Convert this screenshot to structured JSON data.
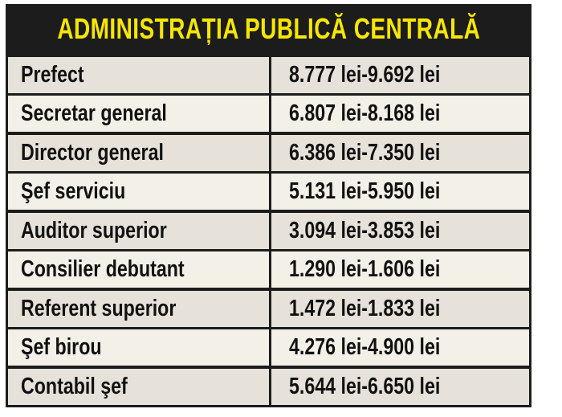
{
  "title": "ADMINISTRAȚIA PUBLICĂ CENTRALĂ",
  "rows": [
    {
      "position": "Prefect",
      "salary": "8.777 lei-9.692 lei"
    },
    {
      "position": "Secretar general",
      "salary": "6.807 lei-8.168 lei"
    },
    {
      "position": "Director general",
      "salary": "6.386 lei-7.350 lei"
    },
    {
      "position": "Şef serviciu",
      "salary": "5.131 lei-5.950 lei"
    },
    {
      "position": "Auditor superior",
      "salary": "3.094 lei-3.853 lei"
    },
    {
      "position": "Consilier debutant",
      "salary": "1.290 lei-1.606 lei"
    },
    {
      "position": "Referent superior",
      "salary": "1.472 lei-1.833 lei"
    },
    {
      "position": "Şef birou",
      "salary": "4.276 lei-4.900 lei"
    },
    {
      "position": "Contabil şef",
      "salary": "5.644 lei-6.650 lei"
    }
  ]
}
